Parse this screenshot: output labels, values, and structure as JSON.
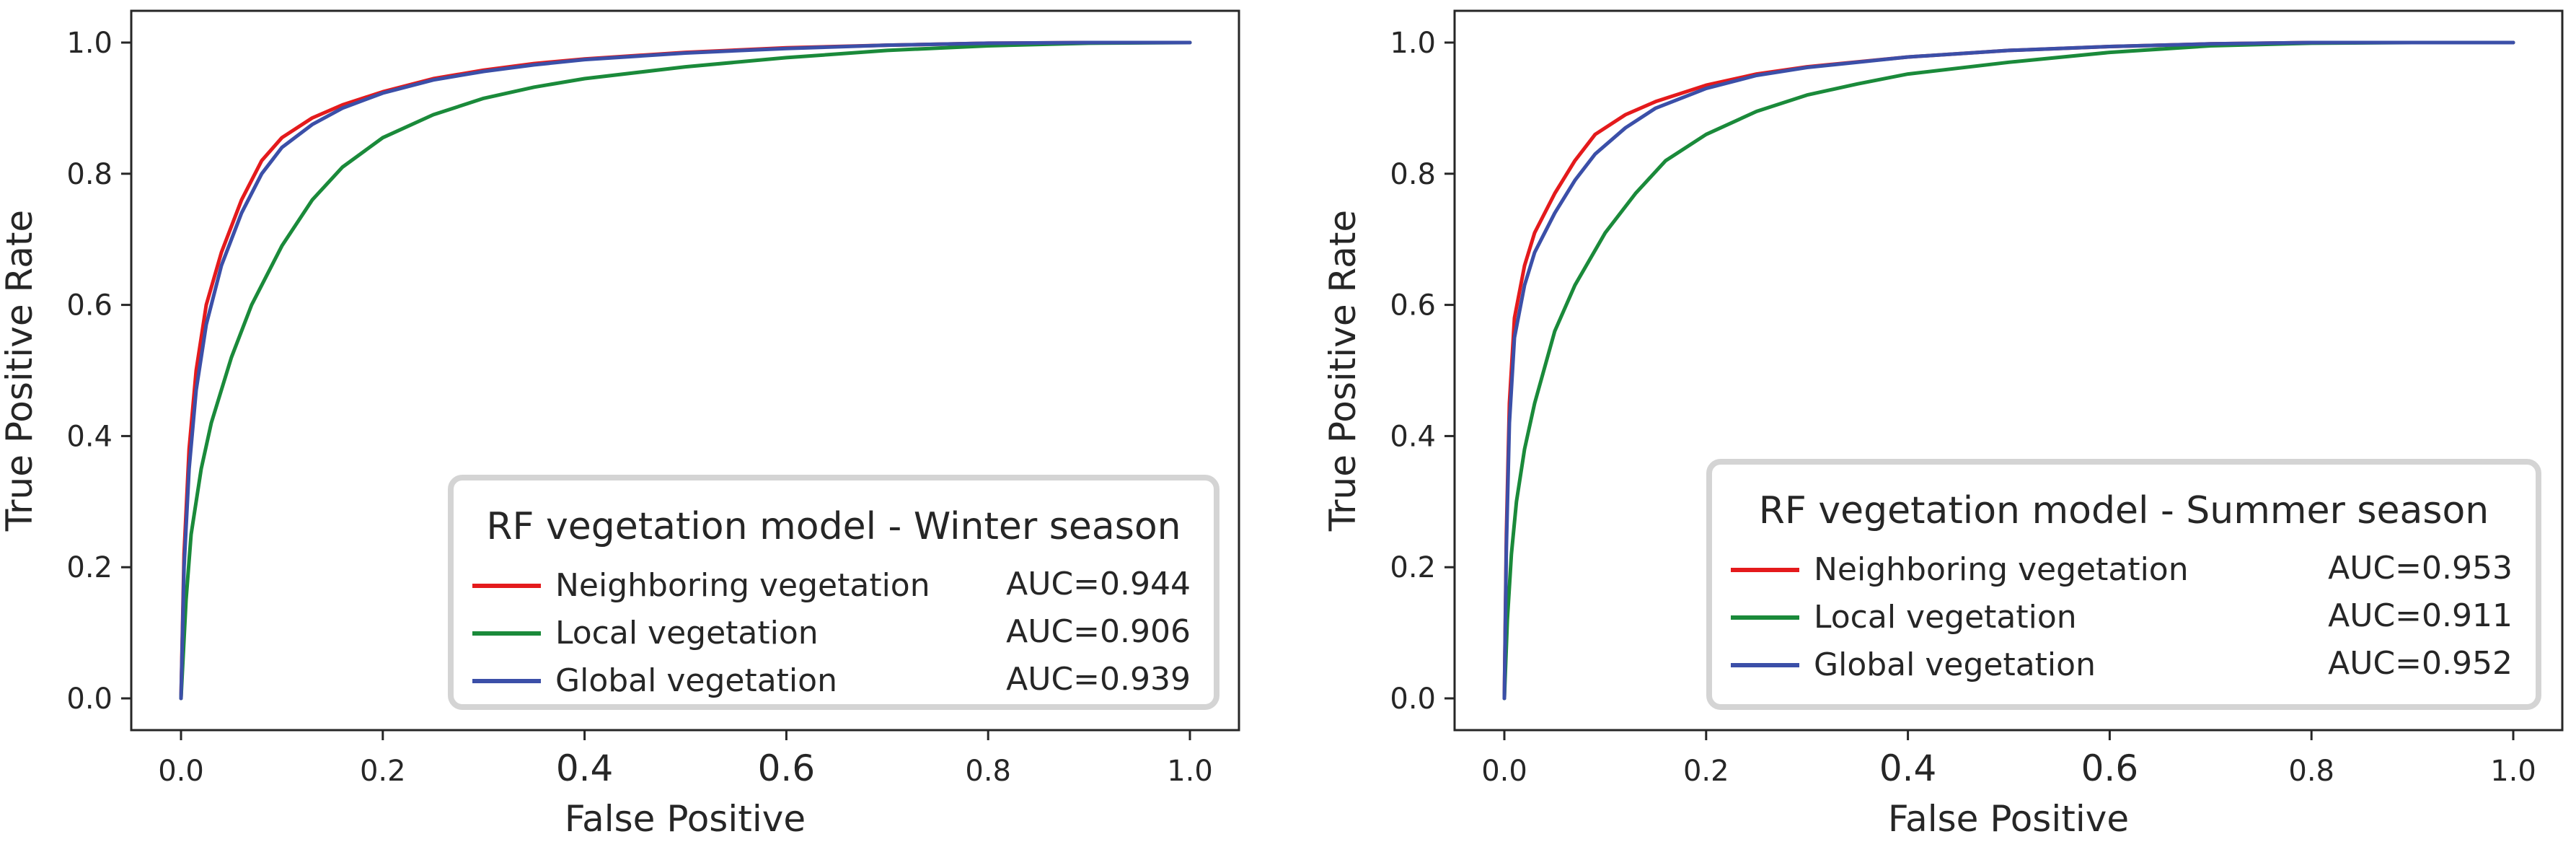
{
  "chart_data": [
    {
      "type": "line",
      "title": "RF vegetation model - Winter season",
      "xlabel": "False Positive",
      "ylabel": "True Positive Rate",
      "xlim": [
        0.0,
        1.0
      ],
      "ylim": [
        0.0,
        1.0
      ],
      "xticks": [
        "0.0",
        "0.2",
        "0.4",
        "0.6",
        "0.8",
        "1.0"
      ],
      "yticks": [
        "0.0",
        "0.2",
        "0.4",
        "0.6",
        "0.8",
        "1.0"
      ],
      "legend_position": "lower-right",
      "series": [
        {
          "name": "Neighboring vegetation",
          "auc": "AUC=0.944",
          "color": "#e41a1c",
          "x": [
            0,
            0.003,
            0.008,
            0.015,
            0.025,
            0.04,
            0.06,
            0.08,
            0.1,
            0.13,
            0.16,
            0.2,
            0.25,
            0.3,
            0.35,
            0.4,
            0.5,
            0.6,
            0.7,
            0.8,
            0.9,
            1.0
          ],
          "y": [
            0,
            0.22,
            0.38,
            0.5,
            0.6,
            0.68,
            0.76,
            0.82,
            0.855,
            0.885,
            0.905,
            0.925,
            0.945,
            0.958,
            0.968,
            0.975,
            0.985,
            0.992,
            0.996,
            0.999,
            1.0,
            1.0
          ]
        },
        {
          "name": "Local vegetation",
          "auc": "AUC=0.906",
          "color": "#1a8a3a",
          "x": [
            0,
            0.005,
            0.01,
            0.02,
            0.03,
            0.05,
            0.07,
            0.1,
            0.13,
            0.16,
            0.2,
            0.25,
            0.3,
            0.35,
            0.4,
            0.5,
            0.6,
            0.7,
            0.8,
            0.9,
            1.0
          ],
          "y": [
            0,
            0.15,
            0.25,
            0.35,
            0.42,
            0.52,
            0.6,
            0.69,
            0.76,
            0.81,
            0.855,
            0.89,
            0.915,
            0.932,
            0.945,
            0.963,
            0.977,
            0.988,
            0.995,
            0.999,
            1.0
          ]
        },
        {
          "name": "Global vegetation",
          "auc": "AUC=0.939",
          "color": "#3b4fa8",
          "x": [
            0,
            0.003,
            0.008,
            0.015,
            0.025,
            0.04,
            0.06,
            0.08,
            0.1,
            0.13,
            0.16,
            0.2,
            0.25,
            0.3,
            0.35,
            0.4,
            0.5,
            0.6,
            0.7,
            0.8,
            0.9,
            1.0
          ],
          "y": [
            0,
            0.2,
            0.35,
            0.47,
            0.57,
            0.66,
            0.74,
            0.8,
            0.84,
            0.875,
            0.9,
            0.923,
            0.943,
            0.956,
            0.966,
            0.974,
            0.984,
            0.991,
            0.996,
            0.999,
            1.0,
            1.0
          ]
        }
      ]
    },
    {
      "type": "line",
      "title": "RF vegetation model - Summer season",
      "xlabel": "False Positive",
      "ylabel": "True Positive Rate",
      "xlim": [
        0.0,
        1.0
      ],
      "ylim": [
        0.0,
        1.0
      ],
      "xticks": [
        "0.0",
        "0.2",
        "0.4",
        "0.6",
        "0.8",
        "1.0"
      ],
      "yticks": [
        "0.0",
        "0.2",
        "0.4",
        "0.6",
        "0.8",
        "1.0"
      ],
      "legend_position": "lower-right",
      "series": [
        {
          "name": "Neighboring vegetation",
          "auc": "AUC=0.953",
          "color": "#e41a1c",
          "x": [
            0,
            0.002,
            0.005,
            0.01,
            0.02,
            0.03,
            0.05,
            0.07,
            0.09,
            0.12,
            0.15,
            0.2,
            0.25,
            0.3,
            0.4,
            0.5,
            0.6,
            0.7,
            0.8,
            0.9,
            1.0
          ],
          "y": [
            0,
            0.25,
            0.45,
            0.58,
            0.66,
            0.71,
            0.77,
            0.82,
            0.86,
            0.89,
            0.91,
            0.935,
            0.952,
            0.963,
            0.978,
            0.988,
            0.994,
            0.998,
            1.0,
            1.0,
            1.0
          ]
        },
        {
          "name": "Local vegetation",
          "auc": "AUC=0.911",
          "color": "#1a8a3a",
          "x": [
            0,
            0.003,
            0.007,
            0.012,
            0.02,
            0.03,
            0.05,
            0.07,
            0.1,
            0.13,
            0.16,
            0.2,
            0.25,
            0.3,
            0.35,
            0.4,
            0.5,
            0.6,
            0.7,
            0.8,
            0.9,
            1.0
          ],
          "y": [
            0,
            0.12,
            0.22,
            0.3,
            0.38,
            0.45,
            0.56,
            0.63,
            0.71,
            0.77,
            0.82,
            0.86,
            0.895,
            0.92,
            0.937,
            0.952,
            0.97,
            0.985,
            0.995,
            0.999,
            1.0,
            1.0
          ]
        },
        {
          "name": "Global vegetation",
          "auc": "AUC=0.952",
          "color": "#3b4fa8",
          "x": [
            0,
            0.002,
            0.005,
            0.01,
            0.02,
            0.03,
            0.05,
            0.07,
            0.09,
            0.12,
            0.15,
            0.2,
            0.25,
            0.3,
            0.4,
            0.5,
            0.6,
            0.7,
            0.8,
            0.9,
            1.0
          ],
          "y": [
            0,
            0.23,
            0.42,
            0.55,
            0.63,
            0.68,
            0.74,
            0.79,
            0.83,
            0.87,
            0.9,
            0.93,
            0.95,
            0.962,
            0.978,
            0.988,
            0.994,
            0.998,
            1.0,
            1.0,
            1.0
          ]
        }
      ]
    }
  ]
}
